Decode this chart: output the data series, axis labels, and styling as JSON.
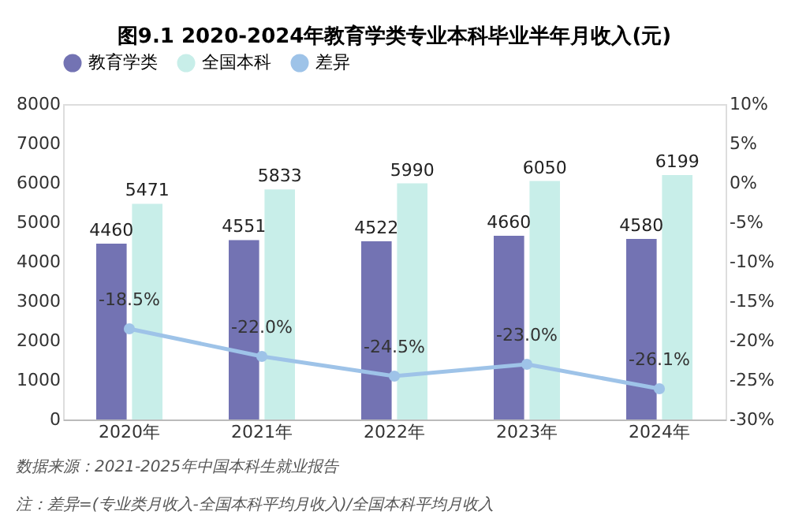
{
  "chart_data": {
    "type": "bar",
    "title": "图9.1  2020-2024年教育学类专业本科毕业半年月收入(元)",
    "categories": [
      "2020年",
      "2021年",
      "2022年",
      "2023年",
      "2024年"
    ],
    "series": [
      {
        "name": "教育学类",
        "type": "bar",
        "color": "#7373b3",
        "values": [
          4460,
          4551,
          4522,
          4660,
          4580
        ]
      },
      {
        "name": "全国本科",
        "type": "bar",
        "color": "#c8eee9",
        "values": [
          5471,
          5833,
          5990,
          6050,
          6199
        ]
      },
      {
        "name": "差异",
        "type": "line",
        "axis": "y2",
        "color": "#9ec3e8",
        "marker": "circle",
        "values": [
          -18.5,
          -22.0,
          -24.5,
          -23.0,
          -26.1
        ],
        "value_labels": [
          "-18.5%",
          "-22.0%",
          "-24.5%",
          "-23.0%",
          "-26.1%"
        ]
      }
    ],
    "data_labels": true,
    "ylim": [
      0,
      8000
    ],
    "yticks": [
      0,
      1000,
      2000,
      3000,
      4000,
      5000,
      6000,
      7000,
      8000
    ],
    "y2lim": [
      -30,
      10
    ],
    "y2ticks": [
      {
        "value": 10,
        "label": "10%"
      },
      {
        "value": 5,
        "label": "5%"
      },
      {
        "value": 0,
        "label": "0%"
      },
      {
        "value": -5,
        "label": "-5%"
      },
      {
        "value": -10,
        "label": "-10%"
      },
      {
        "value": -15,
        "label": "-15%"
      },
      {
        "value": -20,
        "label": "-20%"
      },
      {
        "value": -25,
        "label": "-25%"
      },
      {
        "value": -30,
        "label": "-30%"
      }
    ],
    "legend": "top",
    "annotations": [
      "数据来源：2021-2025年中国本科生就业报告",
      "注：差异=(专业类月收入-全国本科平均月收入)/全国本科平均月收入"
    ]
  }
}
